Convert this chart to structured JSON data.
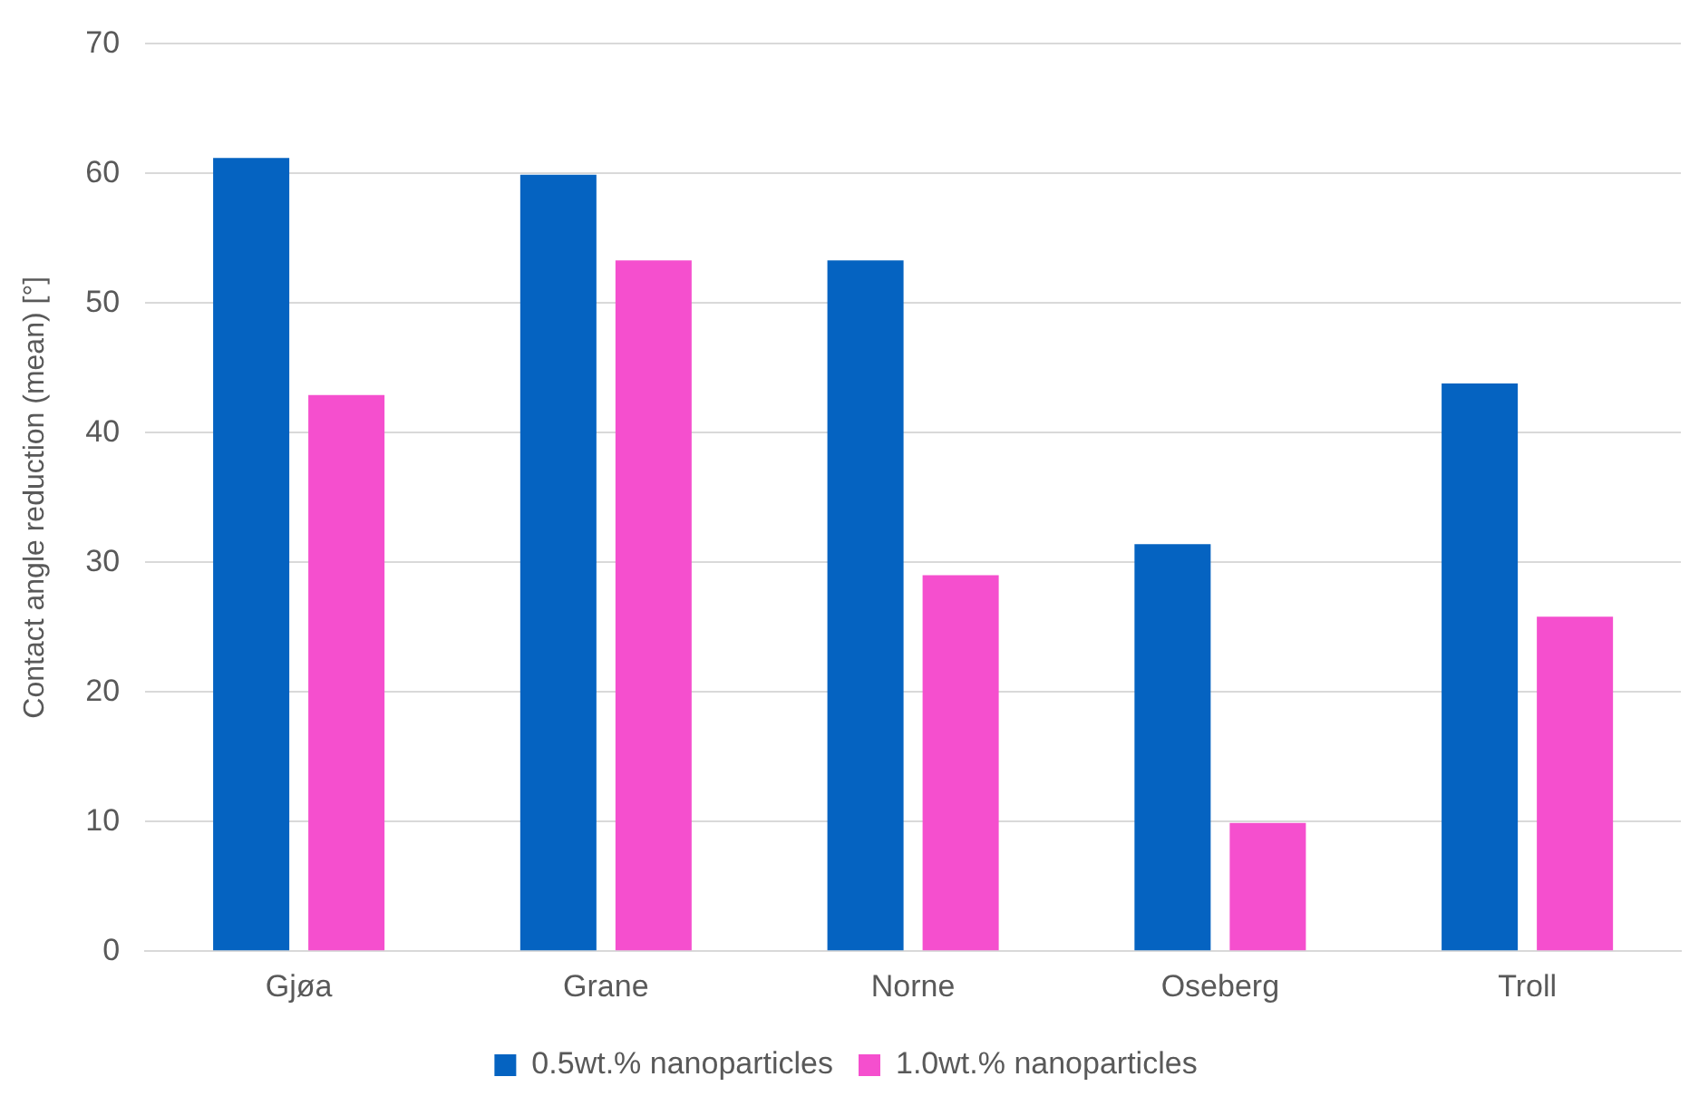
{
  "chart_data": {
    "type": "bar",
    "ylabel": "Contact angle reduction (mean) [°]",
    "categories": [
      "Gjøa",
      "Grane",
      "Norne",
      "Oseberg",
      "Troll"
    ],
    "series": [
      {
        "name": "0.5wt.% nanoparticles",
        "color": "#0563c1",
        "values": [
          61.2,
          59.9,
          53.3,
          31.4,
          43.8
        ]
      },
      {
        "name": "1.0wt.% nanoparticles",
        "color": "#f54fce",
        "values": [
          42.9,
          53.3,
          29.0,
          9.9,
          25.8
        ]
      }
    ],
    "ylim": [
      0,
      70
    ],
    "yticks": [
      0,
      10,
      20,
      30,
      40,
      50,
      60,
      70
    ],
    "grid": "y",
    "legend": "bottom"
  }
}
